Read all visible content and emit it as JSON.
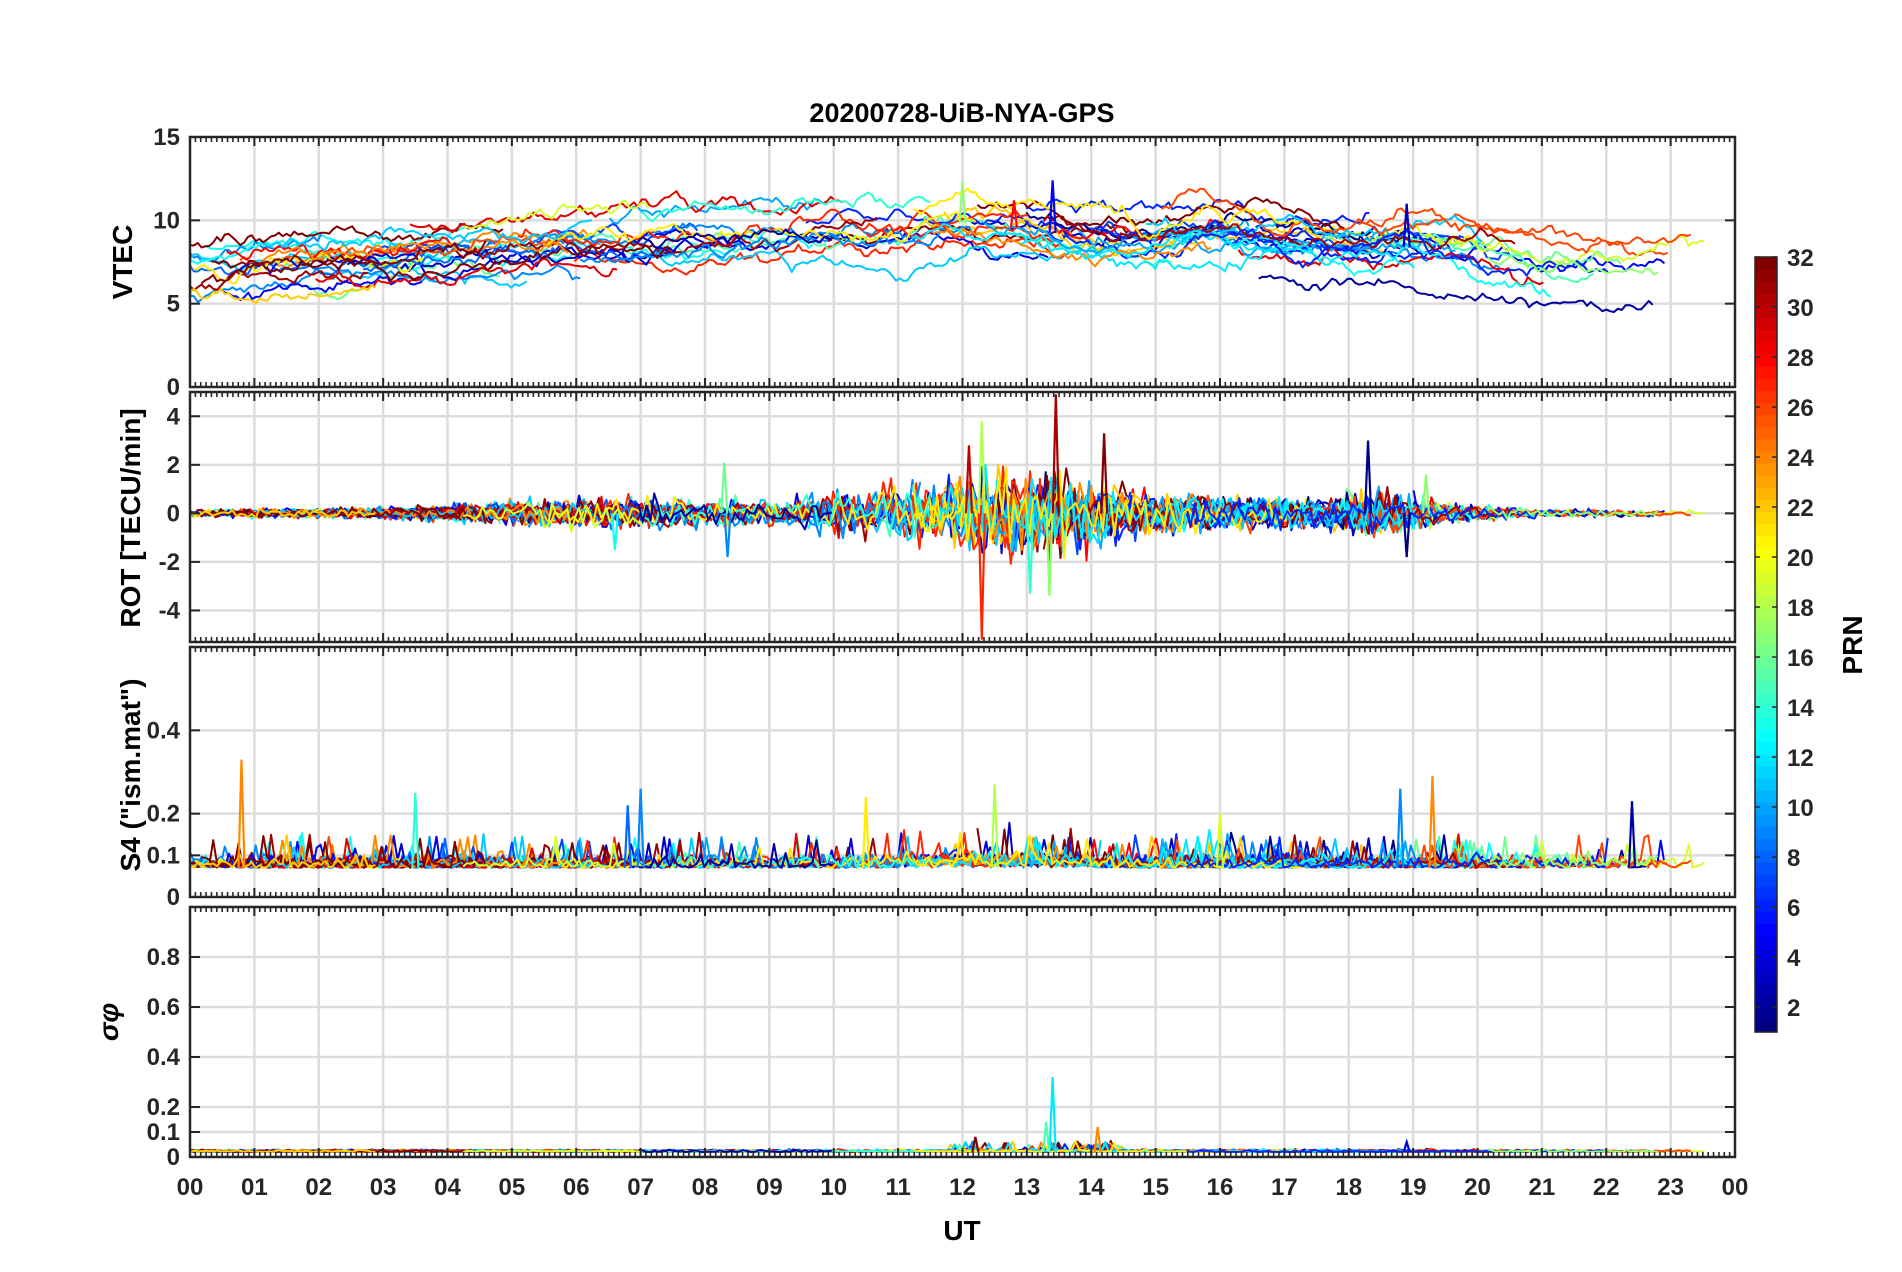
{
  "chart_data": {
    "type": "line",
    "title": "20200728-UiB-NYA-GPS",
    "xlabel": "UT",
    "x_range_hours": [
      0,
      24
    ],
    "x_tick_labels": [
      "00",
      "01",
      "02",
      "03",
      "04",
      "05",
      "06",
      "07",
      "08",
      "09",
      "10",
      "11",
      "12",
      "13",
      "14",
      "15",
      "16",
      "17",
      "18",
      "19",
      "20",
      "21",
      "22",
      "23",
      "00"
    ],
    "colorbar": {
      "label": "PRN",
      "range": [
        1,
        32
      ],
      "colormap": "jet",
      "tick_labels": [
        "2",
        "4",
        "6",
        "8",
        "10",
        "12",
        "14",
        "16",
        "18",
        "20",
        "22",
        "24",
        "26",
        "28",
        "30",
        "32"
      ]
    },
    "panels": [
      {
        "id": "vtec",
        "ylabel": "VTEC",
        "ylim": [
          0,
          15
        ],
        "y_tick_labels": [
          "0",
          "5",
          "10",
          "15"
        ],
        "grid": true,
        "profile": [
          [
            0,
            7.2
          ],
          [
            2,
            7.6
          ],
          [
            4,
            8.2
          ],
          [
            6,
            8.6
          ],
          [
            8,
            9.0
          ],
          [
            10,
            9.1
          ],
          [
            11,
            9.4
          ],
          [
            12,
            9.8
          ],
          [
            13,
            9.5
          ],
          [
            14,
            8.9
          ],
          [
            15,
            8.8
          ],
          [
            16,
            9.0
          ],
          [
            17,
            8.6
          ],
          [
            18,
            8.3
          ],
          [
            19,
            8.4
          ],
          [
            20,
            8.0
          ],
          [
            21,
            7.1
          ],
          [
            22,
            6.9
          ],
          [
            23,
            7.2
          ],
          [
            24,
            7.3
          ]
        ],
        "spread": 1.6,
        "events": [
          [
            12.0,
            12.3
          ],
          [
            13.4,
            12.4
          ],
          [
            18.9,
            11.0
          ],
          [
            12.8,
            11.2
          ]
        ]
      },
      {
        "id": "rot",
        "ylabel": "ROT [TECU/min]",
        "ylim": [
          -5.3,
          5
        ],
        "y_tick_labels": [
          "-4",
          "-2",
          "0",
          "2",
          "4"
        ],
        "y_tick_values": [
          -4,
          -2,
          0,
          2,
          4
        ],
        "grid": true,
        "activity": [
          [
            0,
            0.15
          ],
          [
            3,
            0.2
          ],
          [
            5,
            0.45
          ],
          [
            7,
            0.6
          ],
          [
            9,
            0.45
          ],
          [
            10,
            0.8
          ],
          [
            11.5,
            1.1
          ],
          [
            12.5,
            1.6
          ],
          [
            13.5,
            1.6
          ],
          [
            14.5,
            1.0
          ],
          [
            16,
            0.6
          ],
          [
            17.5,
            0.5
          ],
          [
            18.5,
            0.9
          ],
          [
            19.5,
            0.4
          ],
          [
            21,
            0.15
          ],
          [
            24,
            0.12
          ]
        ],
        "events": [
          [
            13.45,
            4.9
          ],
          [
            12.3,
            -5.2
          ],
          [
            12.3,
            3.8
          ],
          [
            13.05,
            -3.3
          ],
          [
            13.35,
            -3.4
          ],
          [
            18.3,
            3.0
          ],
          [
            18.9,
            -1.8
          ],
          [
            8.3,
            2.1
          ],
          [
            8.35,
            -1.8
          ],
          [
            12.1,
            2.8
          ],
          [
            14.2,
            3.3
          ],
          [
            6.6,
            -1.5
          ],
          [
            19.2,
            1.6
          ]
        ]
      },
      {
        "id": "s4",
        "ylabel": "S4 (\"ism.mat\")",
        "ylim": [
          0,
          0.6
        ],
        "y_tick_labels": [
          "0",
          "0.1",
          "0.2",
          "0.4"
        ],
        "y_tick_values": [
          0,
          0.1,
          0.2,
          0.4
        ],
        "grid": true,
        "baseline": 0.07,
        "events": [
          [
            0.8,
            0.33
          ],
          [
            7.0,
            0.26
          ],
          [
            12.5,
            0.27
          ],
          [
            19.3,
            0.29
          ],
          [
            18.8,
            0.26
          ],
          [
            3.5,
            0.25
          ],
          [
            22.4,
            0.23
          ],
          [
            10.5,
            0.24
          ],
          [
            16.0,
            0.2
          ],
          [
            6.8,
            0.22
          ]
        ]
      },
      {
        "id": "sigma_phi",
        "ylabel": "σφ",
        "ylim": [
          0,
          1
        ],
        "y_tick_labels": [
          "0",
          "0.1",
          "0.2",
          "0.4",
          "0.6",
          "0.8"
        ],
        "y_tick_values": [
          0,
          0.1,
          0.2,
          0.4,
          0.6,
          0.8
        ],
        "grid": true,
        "baseline": 0.02,
        "events": [
          [
            13.4,
            0.32
          ],
          [
            13.3,
            0.14
          ],
          [
            14.1,
            0.12
          ],
          [
            12.2,
            0.08
          ],
          [
            18.9,
            0.06
          ]
        ]
      }
    ]
  }
}
